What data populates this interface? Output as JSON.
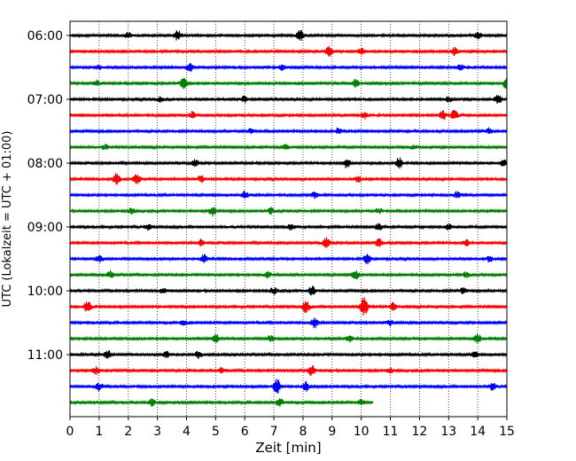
{
  "chart_data": {
    "type": "line",
    "title": "",
    "xlabel": "Zeit  [min]",
    "ylabel": "UTC (Lokalzeit = UTC + 01:00)",
    "xlim": [
      0,
      15
    ],
    "x_ticks": [
      "0",
      "1",
      "2",
      "3",
      "4",
      "5",
      "6",
      "7",
      "8",
      "9",
      "10",
      "11",
      "12",
      "13",
      "14",
      "15"
    ],
    "y_ticks": [
      "06:00",
      "07:00",
      "08:00",
      "09:00",
      "10:00",
      "11:00"
    ],
    "grid": "vertical dotted lines at each minute",
    "trace_interval_minutes": 15,
    "start_time": "06:00",
    "colors": [
      "#000000",
      "#ff0000",
      "#0000ff",
      "#008000"
    ],
    "traces": [
      {
        "start": "06:00",
        "color": "#000000",
        "end_min": 15,
        "events": [
          [
            2.0,
            0.25
          ],
          [
            3.7,
            0.5
          ],
          [
            7.9,
            0.5
          ],
          [
            14.0,
            0.3
          ]
        ]
      },
      {
        "start": "06:15",
        "color": "#ff0000",
        "end_min": 15,
        "events": [
          [
            8.9,
            0.45
          ],
          [
            10.0,
            0.25
          ],
          [
            13.2,
            0.35
          ]
        ]
      },
      {
        "start": "06:30",
        "color": "#0000ff",
        "end_min": 15,
        "events": [
          [
            1.0,
            0.2
          ],
          [
            4.1,
            0.4
          ],
          [
            7.3,
            0.25
          ],
          [
            13.4,
            0.25
          ]
        ]
      },
      {
        "start": "06:45",
        "color": "#008000",
        "end_min": 15,
        "events": [
          [
            0.9,
            0.25
          ],
          [
            3.9,
            0.5
          ],
          [
            9.8,
            0.35
          ],
          [
            15.0,
            0.6
          ]
        ]
      },
      {
        "start": "07:00",
        "color": "#000000",
        "end_min": 15,
        "events": [
          [
            3.1,
            0.25
          ],
          [
            6.0,
            0.3
          ],
          [
            13.0,
            0.25
          ],
          [
            14.7,
            0.4
          ]
        ]
      },
      {
        "start": "07:15",
        "color": "#ff0000",
        "end_min": 15,
        "events": [
          [
            4.2,
            0.35
          ],
          [
            10.1,
            0.3
          ],
          [
            12.8,
            0.4
          ],
          [
            13.2,
            0.45
          ]
        ]
      },
      {
        "start": "07:30",
        "color": "#0000ff",
        "end_min": 15,
        "events": [
          [
            6.2,
            0.2
          ],
          [
            9.2,
            0.25
          ],
          [
            14.4,
            0.3
          ]
        ]
      },
      {
        "start": "07:45",
        "color": "#008000",
        "end_min": 15,
        "events": [
          [
            1.2,
            0.2
          ],
          [
            7.4,
            0.2
          ],
          [
            11.8,
            0.2
          ]
        ]
      },
      {
        "start": "08:00",
        "color": "#000000",
        "end_min": 15,
        "events": [
          [
            4.3,
            0.3
          ],
          [
            9.5,
            0.45
          ],
          [
            11.3,
            0.5
          ],
          [
            14.9,
            0.3
          ]
        ]
      },
      {
        "start": "08:15",
        "color": "#ff0000",
        "end_min": 15,
        "events": [
          [
            1.6,
            0.55
          ],
          [
            2.3,
            0.45
          ],
          [
            4.5,
            0.3
          ],
          [
            9.9,
            0.25
          ]
        ]
      },
      {
        "start": "08:30",
        "color": "#0000ff",
        "end_min": 15,
        "events": [
          [
            6.0,
            0.4
          ],
          [
            8.4,
            0.25
          ],
          [
            13.3,
            0.3
          ]
        ]
      },
      {
        "start": "08:45",
        "color": "#008000",
        "end_min": 15,
        "events": [
          [
            2.1,
            0.3
          ],
          [
            4.9,
            0.45
          ],
          [
            6.9,
            0.3
          ],
          [
            10.6,
            0.25
          ]
        ]
      },
      {
        "start": "09:00",
        "color": "#000000",
        "end_min": 15,
        "events": [
          [
            2.7,
            0.25
          ],
          [
            7.6,
            0.3
          ],
          [
            10.6,
            0.3
          ],
          [
            13.0,
            0.25
          ]
        ]
      },
      {
        "start": "09:15",
        "color": "#ff0000",
        "end_min": 15,
        "events": [
          [
            4.5,
            0.3
          ],
          [
            8.8,
            0.45
          ],
          [
            10.6,
            0.35
          ],
          [
            13.6,
            0.3
          ]
        ]
      },
      {
        "start": "09:30",
        "color": "#0000ff",
        "end_min": 15,
        "events": [
          [
            1.0,
            0.35
          ],
          [
            4.6,
            0.4
          ],
          [
            10.2,
            0.45
          ],
          [
            14.4,
            0.25
          ]
        ]
      },
      {
        "start": "09:45",
        "color": "#008000",
        "end_min": 15,
        "events": [
          [
            1.4,
            0.35
          ],
          [
            6.8,
            0.3
          ],
          [
            9.8,
            0.45
          ],
          [
            13.6,
            0.25
          ]
        ]
      },
      {
        "start": "10:00",
        "color": "#000000",
        "end_min": 15,
        "events": [
          [
            3.2,
            0.25
          ],
          [
            7.0,
            0.3
          ],
          [
            8.3,
            0.4
          ],
          [
            13.5,
            0.25
          ]
        ]
      },
      {
        "start": "10:15",
        "color": "#ff0000",
        "end_min": 15,
        "events": [
          [
            0.6,
            0.5
          ],
          [
            8.1,
            0.55
          ],
          [
            10.1,
            0.85
          ],
          [
            11.1,
            0.35
          ]
        ]
      },
      {
        "start": "10:30",
        "color": "#0000ff",
        "end_min": 15,
        "events": [
          [
            3.9,
            0.3
          ],
          [
            8.4,
            0.45
          ],
          [
            11.0,
            0.25
          ]
        ]
      },
      {
        "start": "10:45",
        "color": "#008000",
        "end_min": 15,
        "events": [
          [
            5.0,
            0.45
          ],
          [
            6.9,
            0.3
          ],
          [
            9.6,
            0.3
          ],
          [
            14.0,
            0.4
          ]
        ]
      },
      {
        "start": "11:00",
        "color": "#000000",
        "end_min": 15,
        "events": [
          [
            1.3,
            0.35
          ],
          [
            3.3,
            0.3
          ],
          [
            4.4,
            0.3
          ],
          [
            13.9,
            0.3
          ]
        ]
      },
      {
        "start": "11:15",
        "color": "#ff0000",
        "end_min": 15,
        "events": [
          [
            0.9,
            0.35
          ],
          [
            5.2,
            0.25
          ],
          [
            8.3,
            0.45
          ],
          [
            11.0,
            0.25
          ]
        ]
      },
      {
        "start": "11:30",
        "color": "#0000ff",
        "end_min": 15,
        "events": [
          [
            1.0,
            0.35
          ],
          [
            7.1,
            0.75
          ],
          [
            8.1,
            0.4
          ],
          [
            14.5,
            0.3
          ]
        ]
      },
      {
        "start": "11:45",
        "color": "#008000",
        "end_min": 10.4,
        "events": [
          [
            2.8,
            0.3
          ],
          [
            7.2,
            0.35
          ],
          [
            10.0,
            0.25
          ]
        ]
      }
    ]
  }
}
